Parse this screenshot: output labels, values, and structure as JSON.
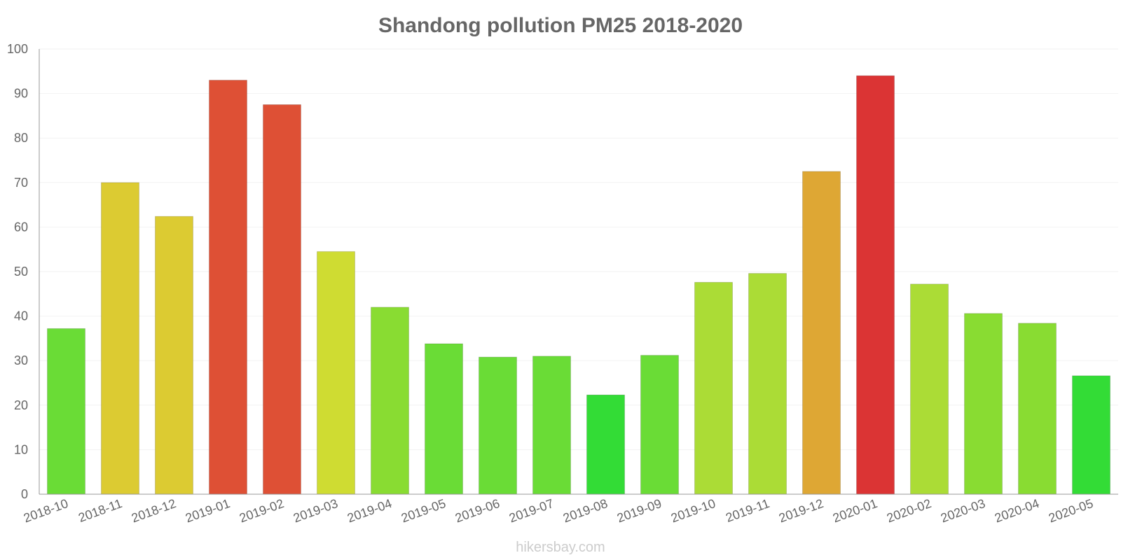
{
  "chart_data": {
    "type": "bar",
    "title": "Shandong pollution PM25 2018-2020",
    "xlabel": "",
    "ylabel": "",
    "ylim": [
      0,
      100
    ],
    "yticks": [
      0,
      10,
      20,
      30,
      40,
      50,
      60,
      70,
      80,
      90,
      100
    ],
    "categories": [
      "2018-10",
      "2018-11",
      "2018-12",
      "2019-01",
      "2019-02",
      "2019-03",
      "2019-04",
      "2019-05",
      "2019-06",
      "2019-07",
      "2019-08",
      "2019-09",
      "2019-10",
      "2019-11",
      "2019-12",
      "2020-01",
      "2020-02",
      "2020-03",
      "2020-04",
      "2020-05"
    ],
    "values": [
      37.2,
      70,
      62.4,
      93,
      87.5,
      54.5,
      42,
      33.8,
      30.8,
      31,
      22.3,
      31.2,
      47.6,
      49.6,
      72.5,
      94,
      47.2,
      40.6,
      38.4,
      26.6
    ],
    "colors": [
      "#6adc36",
      "#dccb32",
      "#dccb32",
      "#de5035",
      "#de5035",
      "#cfdc32",
      "#89dc32",
      "#6adc36",
      "#6adc36",
      "#6adc36",
      "#33dc36",
      "#6adc36",
      "#abdc36",
      "#abdc36",
      "#dea734",
      "#db3434",
      "#abdc36",
      "#89dc32",
      "#89dc32",
      "#33dc36"
    ],
    "grid": true,
    "legend": "none"
  },
  "footer": {
    "credit": "hikersbay.com"
  }
}
